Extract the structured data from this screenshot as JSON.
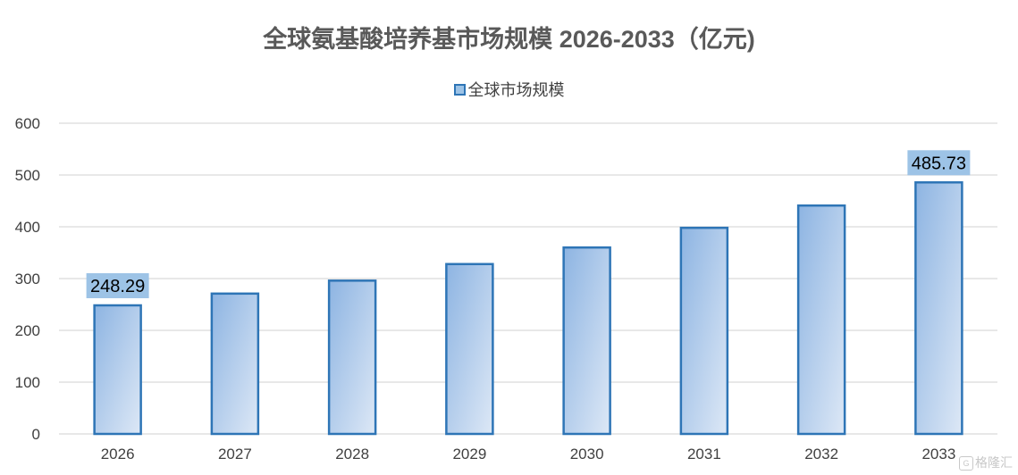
{
  "chart_data": {
    "type": "bar",
    "title": "全球氨基酸培养基市场规模 2026-2033（亿元)",
    "categories": [
      "2026",
      "2027",
      "2028",
      "2029",
      "2030",
      "2031",
      "2032",
      "2033"
    ],
    "series": [
      {
        "name": "全球市场规模",
        "values": [
          248.29,
          271,
          296,
          328,
          360,
          398,
          441,
          485.73
        ]
      }
    ],
    "data_labels": [
      {
        "category": "2026",
        "text": "248.29"
      },
      {
        "category": "2033",
        "text": "485.73"
      }
    ],
    "ylim": [
      0,
      600
    ],
    "yticks": [
      0,
      100,
      200,
      300,
      400,
      500,
      600
    ],
    "grid": true,
    "legend_position": "top-center",
    "colors": {
      "bar_fill_start": "#8db4e2",
      "bar_fill_end": "#dde8f6",
      "bar_stroke": "#2e75b6",
      "label_bg": "#9dc3e6",
      "gridline": "#d9d9d9",
      "axis_text": "#404040"
    }
  },
  "watermark": {
    "icon": "gelonghui-logo-icon",
    "text": "格隆汇"
  }
}
